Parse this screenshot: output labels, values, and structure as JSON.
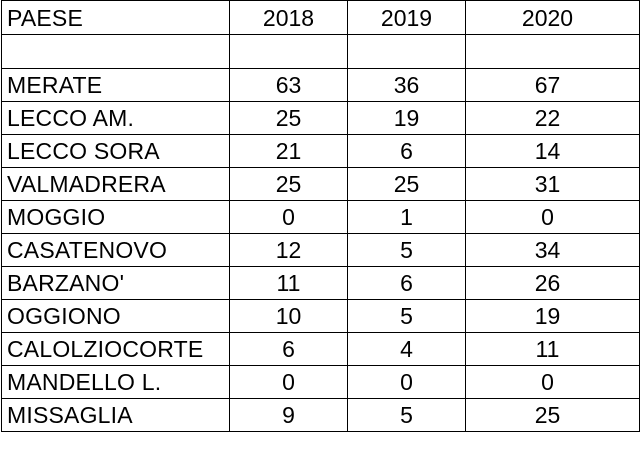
{
  "table": {
    "headers": [
      "PAESE",
      "2018",
      "2019",
      "2020"
    ],
    "rows": [
      {
        "paese": "MERATE",
        "y2018": "63",
        "y2019": "36",
        "y2020": "67"
      },
      {
        "paese": "LECCO AM.",
        "y2018": "25",
        "y2019": "19",
        "y2020": "22"
      },
      {
        "paese": "LECCO SORA",
        "y2018": "21",
        "y2019": "6",
        "y2020": "14"
      },
      {
        "paese": "VALMADRERA",
        "y2018": "25",
        "y2019": "25",
        "y2020": "31"
      },
      {
        "paese": "MOGGIO",
        "y2018": "0",
        "y2019": "1",
        "y2020": "0"
      },
      {
        "paese": "CASATENOVO",
        "y2018": "12",
        "y2019": "5",
        "y2020": "34"
      },
      {
        "paese": "BARZANO'",
        "y2018": "11",
        "y2019": "6",
        "y2020": "26"
      },
      {
        "paese": "OGGIONO",
        "y2018": "10",
        "y2019": "5",
        "y2020": "19"
      },
      {
        "paese": "CALOLZIOCORTE",
        "y2018": "6",
        "y2019": "4",
        "y2020": "11"
      },
      {
        "paese": "MANDELLO L.",
        "y2018": "0",
        "y2019": "0",
        "y2020": "0"
      },
      {
        "paese": "MISSAGLIA",
        "y2018": "9",
        "y2019": "5",
        "y2020": "25"
      }
    ]
  }
}
